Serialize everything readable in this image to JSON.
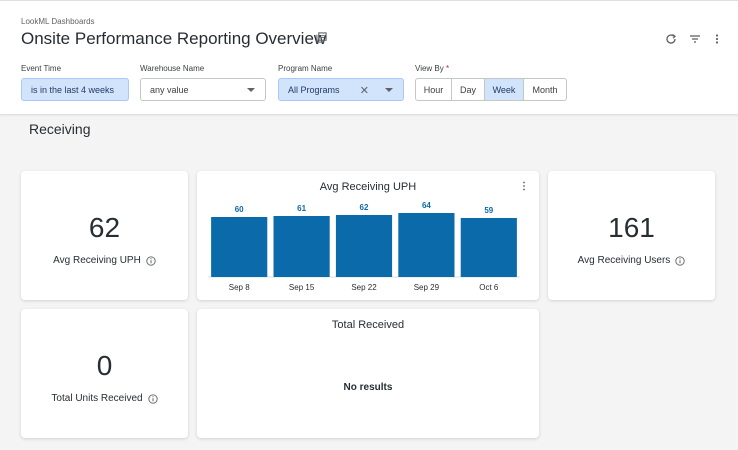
{
  "header": {
    "breadcrumb": "LookML Dashboards",
    "title": "Onsite Performance Reporting Overview",
    "icons": [
      "copy-icon",
      "refresh-icon",
      "filter-icon",
      "more-vert-icon"
    ]
  },
  "filters": {
    "event_time": {
      "label": "Event Time",
      "value": "is in the last 4 weeks"
    },
    "warehouse": {
      "label": "Warehouse Name",
      "value": "any value"
    },
    "program": {
      "label": "Program Name",
      "value": "All Programs",
      "clear": "✕"
    },
    "view_by": {
      "label": "View By",
      "required": "*",
      "options": [
        "Hour",
        "Day",
        "Week",
        "Month"
      ],
      "selected": "Week"
    }
  },
  "section": {
    "title": "Receiving"
  },
  "tiles": {
    "avg_uph": {
      "value": "62",
      "label": "Avg Receiving UPH"
    },
    "avg_users": {
      "value": "161",
      "label": "Avg Receiving Users"
    },
    "units": {
      "value": "0",
      "label": "Total Units Received"
    },
    "total_received": {
      "title": "Total Received",
      "empty": "No results"
    }
  },
  "colors": {
    "bar": "#0b6aa9",
    "accent": "#d2e3fc"
  },
  "chart_data": {
    "type": "bar",
    "title": "Avg Receiving UPH",
    "categories": [
      "Sep 8",
      "Sep 15",
      "Sep 22",
      "Sep 29",
      "Oct 6"
    ],
    "values": [
      60,
      61,
      62,
      64,
      59
    ],
    "data_labels": [
      "60",
      "61",
      "62",
      "64",
      "59"
    ],
    "xlabel": "",
    "ylabel": "",
    "ylim": [
      0,
      70
    ],
    "grid": false,
    "legend": "none"
  }
}
